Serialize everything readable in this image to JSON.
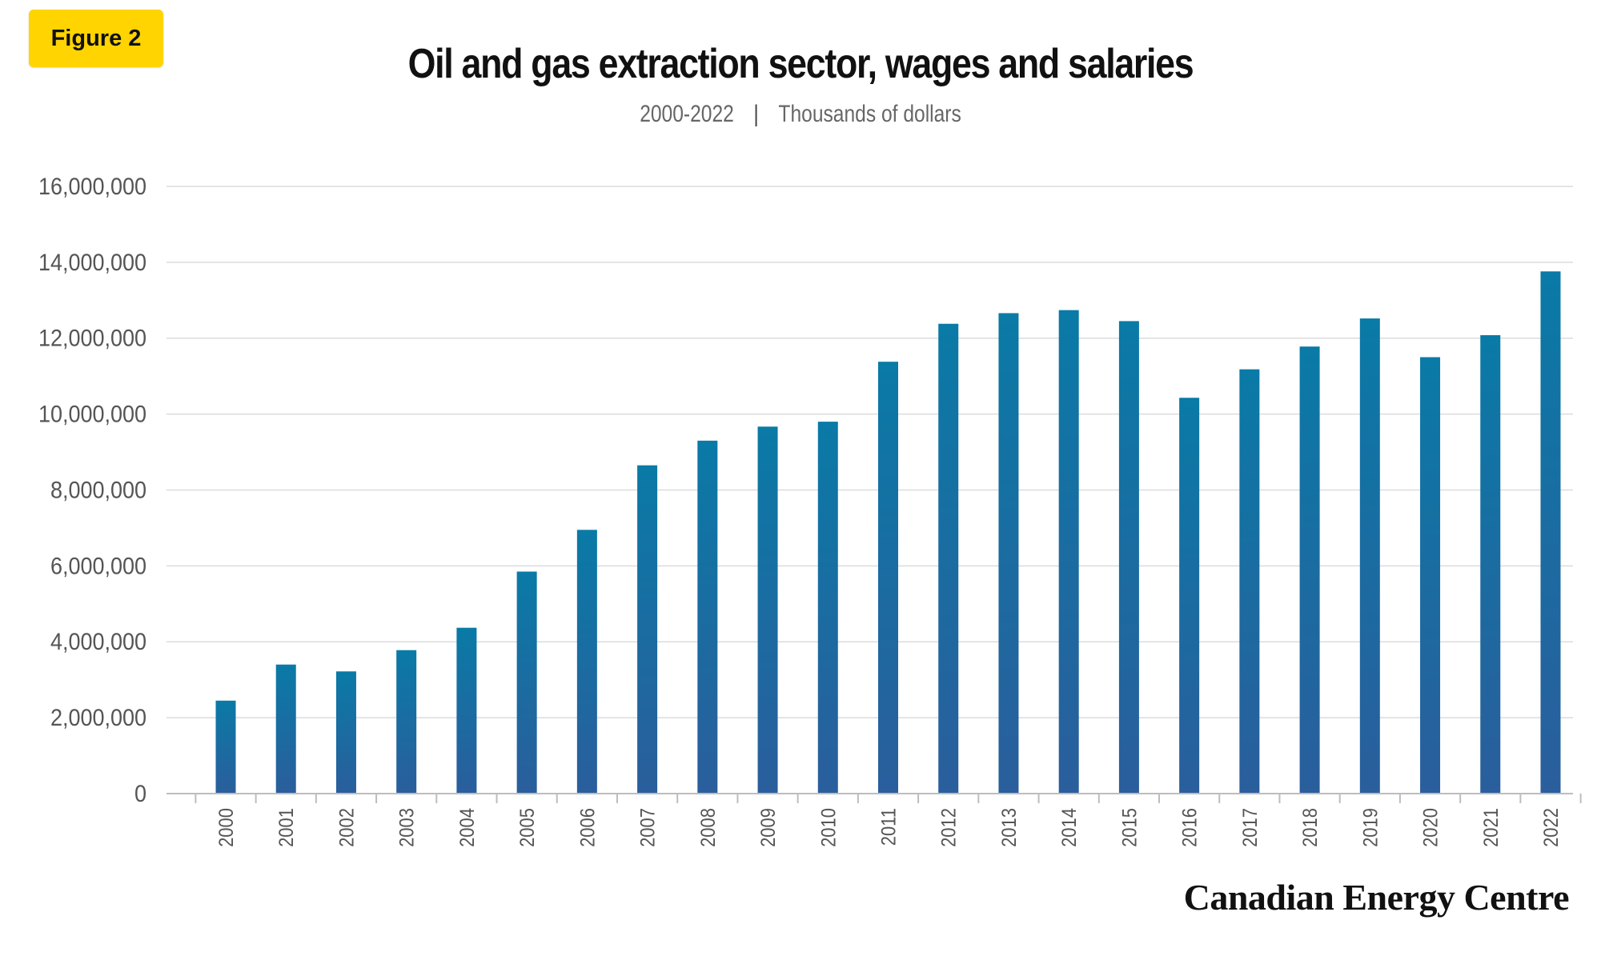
{
  "figure_label": "Figure 2",
  "title": "Oil and gas extraction sector, wages and salaries",
  "subtitle_range": "2000-2022",
  "subtitle_separator": "|",
  "subtitle_units": "Thousands of dollars",
  "brand": "Canadian Energy Centre",
  "colors": {
    "bar_top": "#0a7aa6",
    "bar_bottom": "#2a5e9c",
    "badge": "#ffd400",
    "grid": "#dcdcdc",
    "axis_text": "#555555"
  },
  "chart_data": {
    "type": "bar",
    "title": "Oil and gas extraction sector, wages and salaries",
    "subtitle": "2000-2022 | Thousands of dollars",
    "xlabel": "",
    "ylabel": "",
    "ylim": [
      0,
      16000000
    ],
    "yticks": [
      0,
      2000000,
      4000000,
      6000000,
      8000000,
      10000000,
      12000000,
      14000000,
      16000000
    ],
    "ytick_labels": [
      "0",
      "2,000,000",
      "4,000,000",
      "6,000,000",
      "8,000,000",
      "10,000,000",
      "12,000,000",
      "14,000,000",
      "16,000,000"
    ],
    "grid": true,
    "legend": "none",
    "categories": [
      "2000",
      "2001",
      "2002",
      "2003",
      "2004",
      "2005",
      "2006",
      "2007",
      "2008",
      "2009",
      "2010",
      "2011",
      "2012",
      "2013",
      "2014",
      "2015",
      "2016",
      "2017",
      "2018",
      "2019",
      "2020",
      "2021",
      "2022"
    ],
    "values": [
      2450000,
      3400000,
      3220000,
      3780000,
      4370000,
      5850000,
      6950000,
      8650000,
      9300000,
      9670000,
      9800000,
      11380000,
      12380000,
      12660000,
      12740000,
      12450000,
      10430000,
      11180000,
      11780000,
      12520000,
      11500000,
      12080000,
      13760000
    ]
  }
}
